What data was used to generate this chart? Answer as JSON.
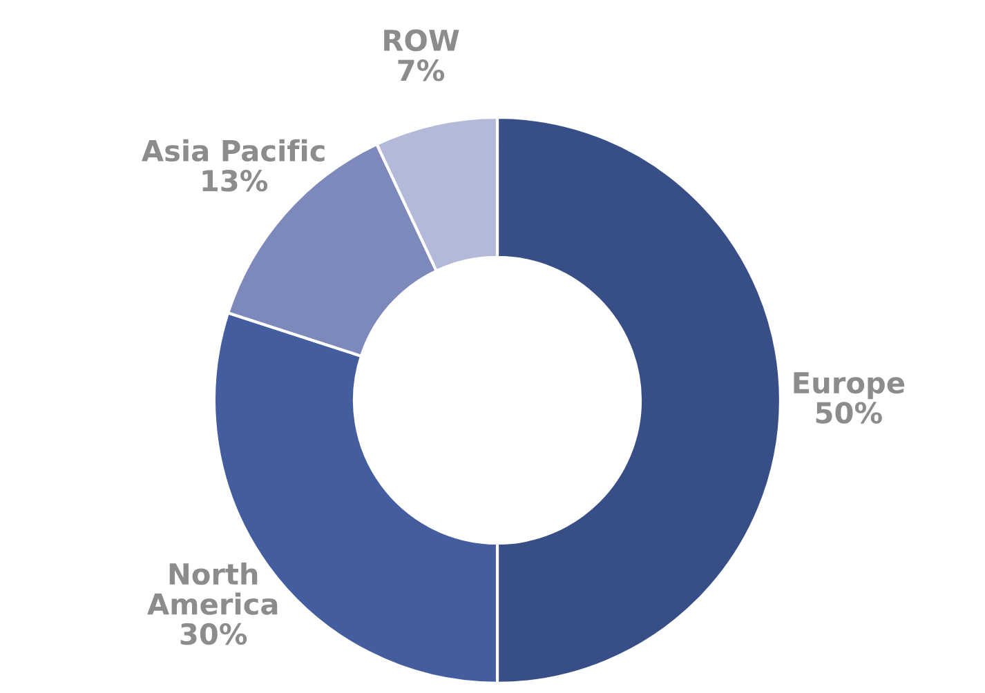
{
  "chart_data": {
    "type": "donut",
    "categories": [
      "Europe",
      "North\nAmerica",
      "Asia Pacific",
      "ROW"
    ],
    "values": [
      50,
      30,
      13,
      7
    ],
    "value_labels": [
      "50%",
      "30%",
      "13%",
      "7%"
    ],
    "colors": [
      "#374e87",
      "#445d9e",
      "#7d89bb",
      "#b3b9d8"
    ],
    "legend": false
  }
}
